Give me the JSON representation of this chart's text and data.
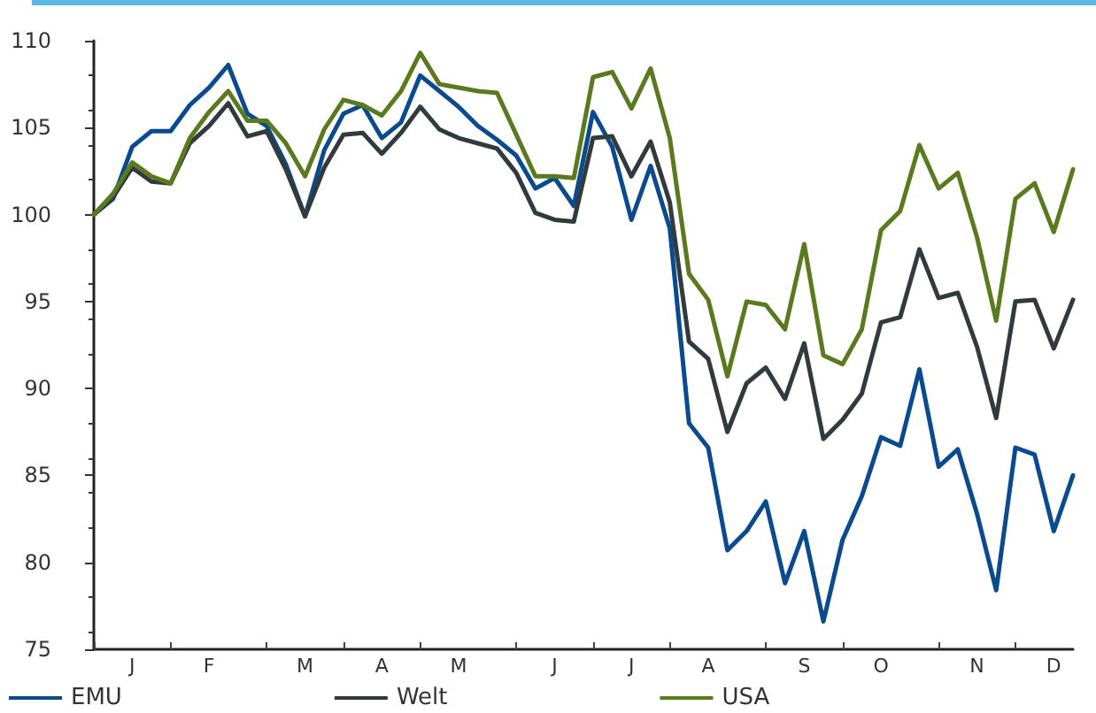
{
  "chart_data": {
    "type": "line",
    "categories": [
      null,
      null,
      "J",
      null,
      null,
      null,
      "F",
      null,
      null,
      null,
      null,
      "M",
      null,
      null,
      null,
      "A",
      null,
      null,
      null,
      "M",
      null,
      null,
      null,
      null,
      "J",
      null,
      null,
      null,
      "J",
      null,
      null,
      null,
      "A",
      null,
      null,
      null,
      null,
      "S",
      null,
      null,
      null,
      "O",
      null,
      null,
      null,
      null,
      "N",
      null,
      null,
      null,
      "D",
      null
    ],
    "series": [
      {
        "name": "EMU",
        "color": "#0a4a8f",
        "values": [
          100.0,
          100.9,
          103.9,
          104.8,
          104.8,
          106.3,
          107.3,
          108.6,
          105.8,
          105.1,
          102.9,
          99.9,
          103.7,
          105.8,
          106.3,
          104.4,
          105.3,
          108.0,
          107.1,
          106.2,
          105.1,
          104.3,
          103.4,
          101.5,
          102.1,
          100.5,
          105.9,
          103.9,
          99.7,
          102.8,
          99.2,
          88.0,
          86.6,
          80.7,
          81.8,
          83.5,
          78.8,
          81.8,
          76.6,
          81.3,
          83.8,
          87.2,
          86.7,
          91.1,
          85.5,
          86.5,
          82.8,
          78.4,
          86.6,
          86.2,
          81.8,
          85.0
        ]
      },
      {
        "name": "Welt",
        "color": "#333a3e",
        "values": [
          100.0,
          101.0,
          102.7,
          101.9,
          101.8,
          104.1,
          105.1,
          106.4,
          104.5,
          104.8,
          102.6,
          99.9,
          102.7,
          104.6,
          104.7,
          103.5,
          104.7,
          106.2,
          104.9,
          104.4,
          104.1,
          103.8,
          102.4,
          100.1,
          99.7,
          99.6,
          104.4,
          104.5,
          102.2,
          104.2,
          100.7,
          92.7,
          91.7,
          87.5,
          90.3,
          91.2,
          89.4,
          92.6,
          87.1,
          88.2,
          89.7,
          93.8,
          94.1,
          98.0,
          95.2,
          95.5,
          92.4,
          88.3,
          95.0,
          95.1,
          92.3,
          95.1
        ]
      },
      {
        "name": "USA",
        "color": "#5a7a1e",
        "values": [
          100.0,
          101.2,
          103.0,
          102.2,
          101.8,
          104.4,
          105.9,
          107.1,
          105.4,
          105.4,
          104.1,
          102.2,
          104.9,
          106.6,
          106.3,
          105.7,
          107.1,
          109.3,
          107.5,
          107.3,
          107.1,
          107.0,
          104.6,
          102.2,
          102.2,
          102.1,
          107.9,
          108.2,
          106.1,
          108.4,
          104.4,
          96.6,
          95.1,
          90.7,
          95.0,
          94.8,
          93.4,
          98.3,
          91.9,
          91.4,
          93.4,
          99.1,
          100.2,
          104.0,
          101.5,
          102.4,
          98.7,
          93.9,
          100.9,
          101.8,
          99.0,
          102.6
        ]
      }
    ],
    "ylim": [
      75,
      110
    ],
    "yticks": [
      75,
      80,
      85,
      90,
      95,
      100,
      105,
      110
    ],
    "grid": false,
    "legend": "bottom",
    "marker": "none",
    "line_style": "solid"
  }
}
